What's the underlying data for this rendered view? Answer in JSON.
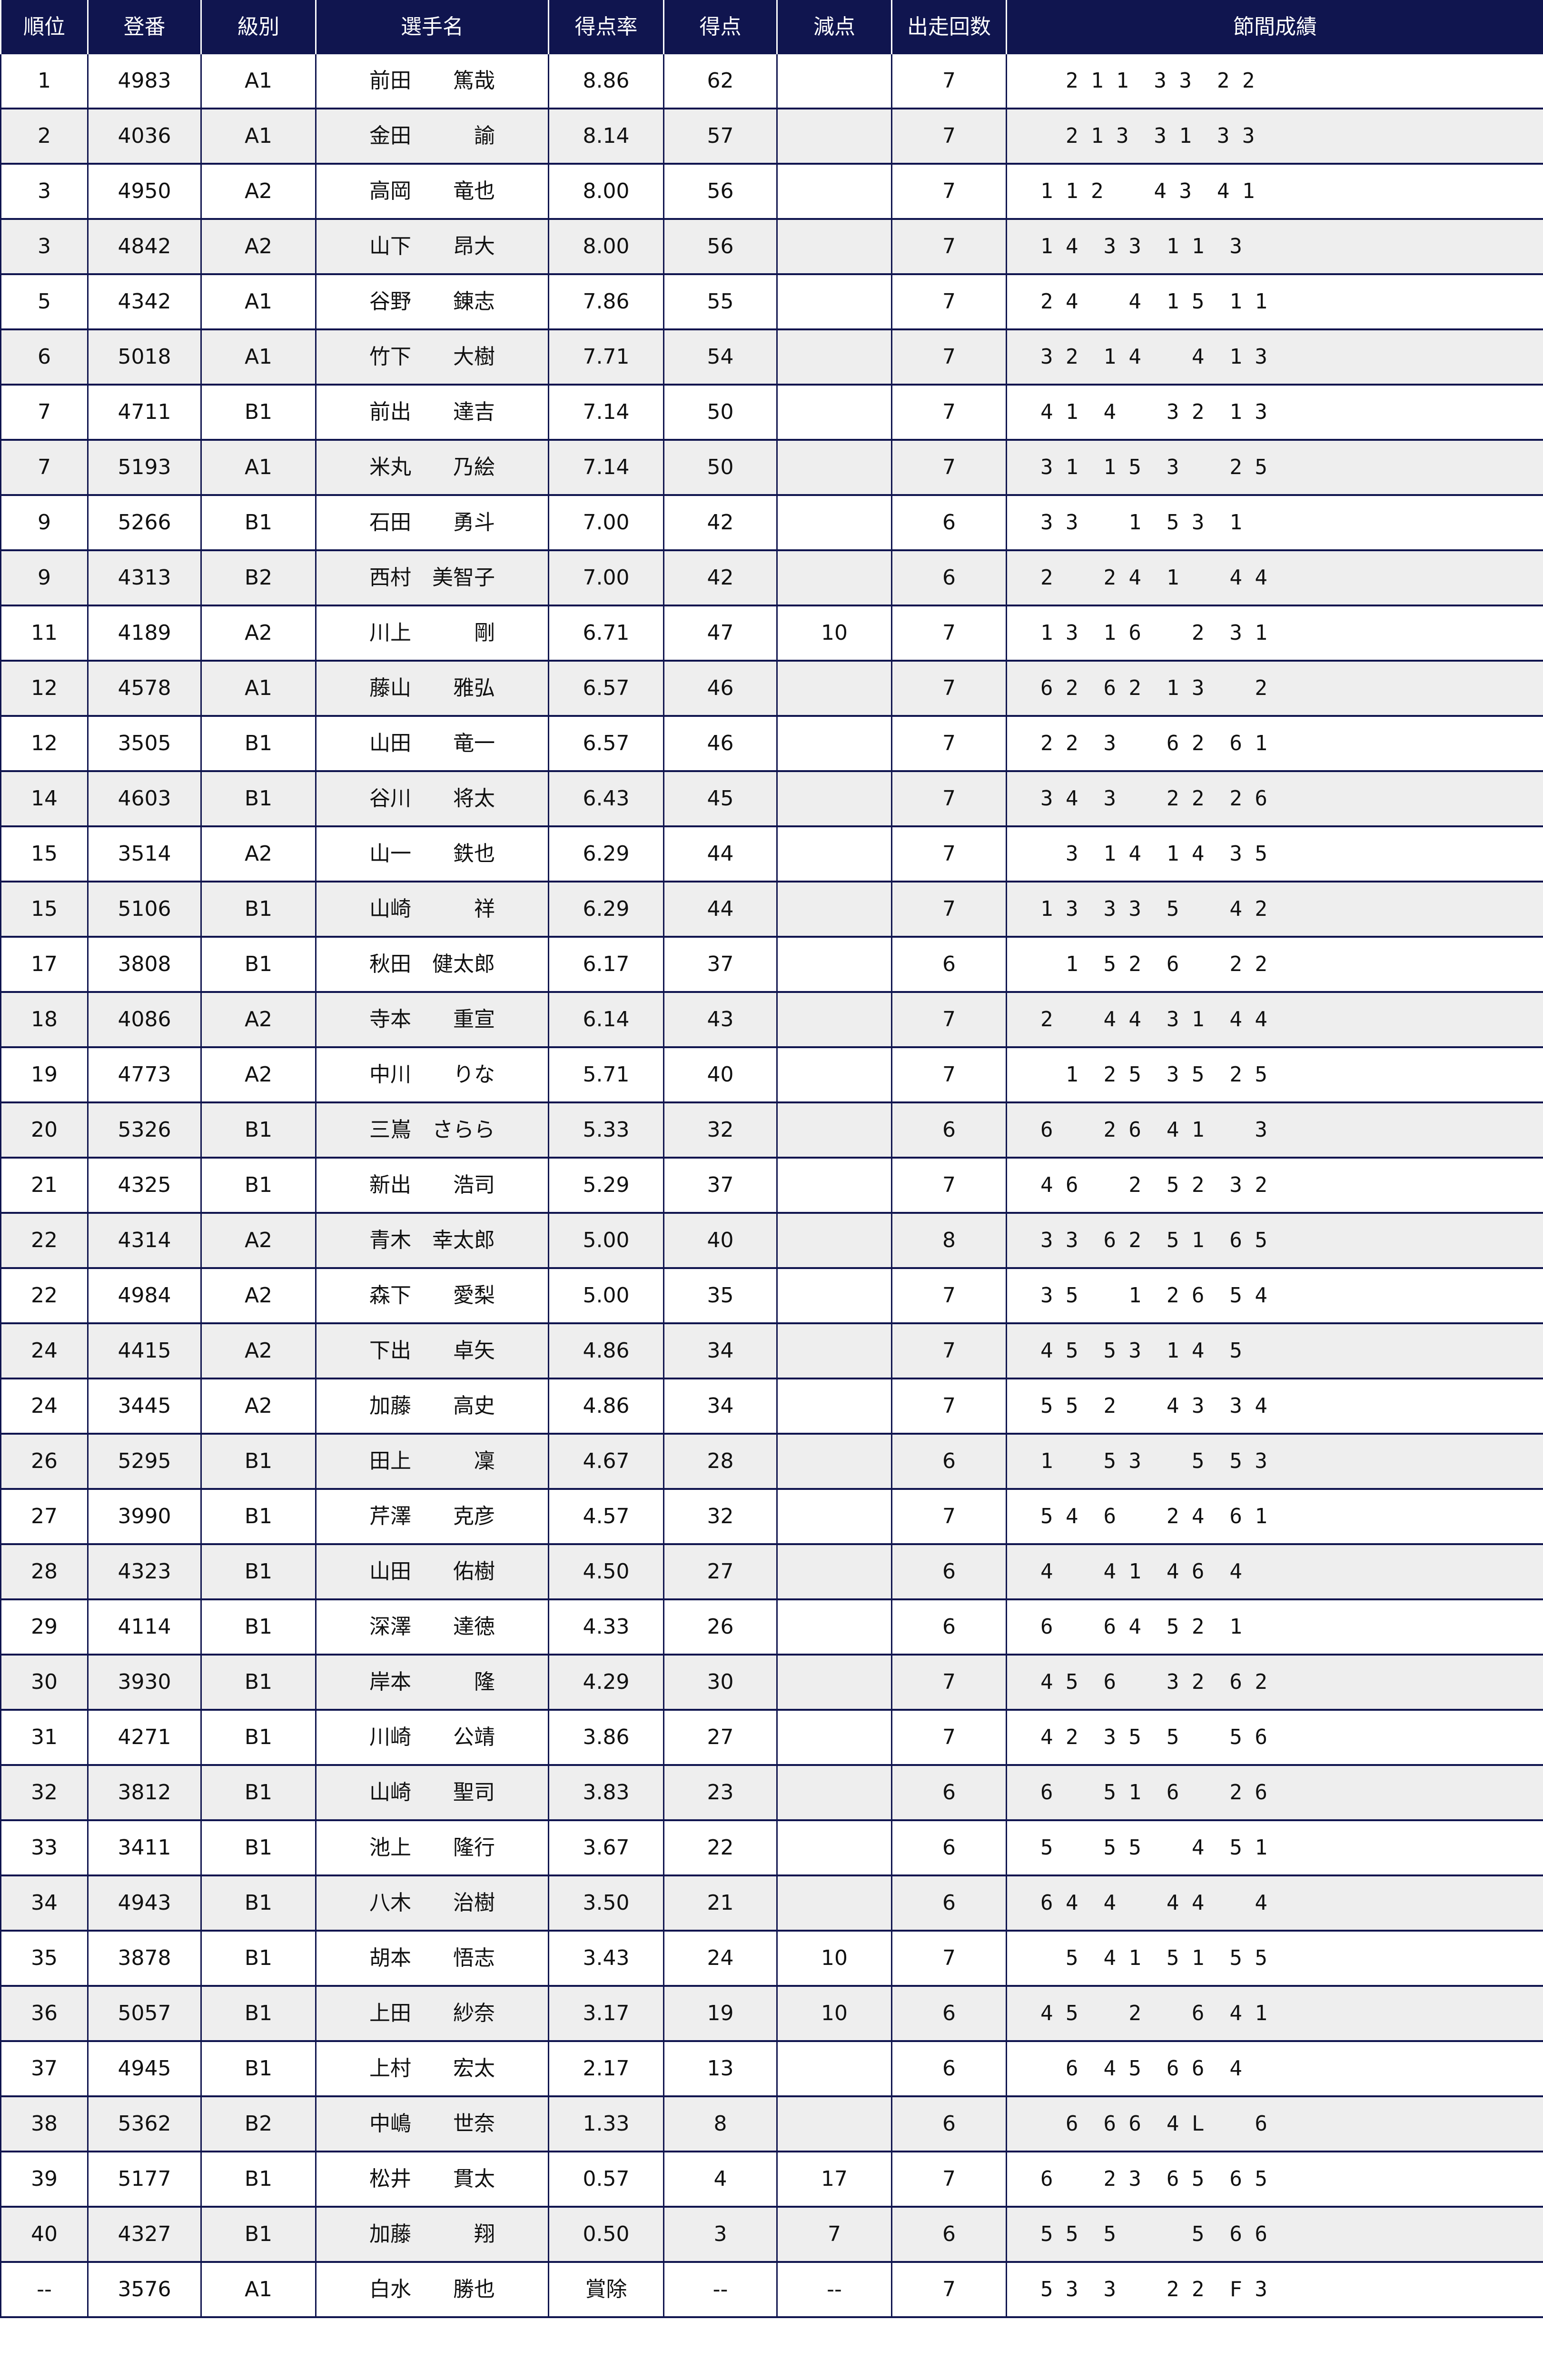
{
  "colors": {
    "header_bg": "#10154f",
    "row_alt": "#eeeeee",
    "border": "#10154f"
  },
  "headers": [
    "順位",
    "登番",
    "級別",
    "選手名",
    "得点率",
    "得点",
    "減点",
    "出走回数",
    "節間成績"
  ],
  "rows": [
    [
      "1",
      "4983",
      "A1",
      "前田　　篤哉",
      "8.86",
      "62",
      "",
      "7",
      "  2 1 1  3 3  2 2"
    ],
    [
      "2",
      "4036",
      "A1",
      "金田　　　諭",
      "8.14",
      "57",
      "",
      "7",
      "  2 1 3  3 1  3 3"
    ],
    [
      "3",
      "4950",
      "A2",
      "高岡　　竜也",
      "8.00",
      "56",
      "",
      "7",
      "1 1 2    4 3  4 1"
    ],
    [
      "3",
      "4842",
      "A2",
      "山下　　昂大",
      "8.00",
      "56",
      "",
      "7",
      "1 4  3 3  1 1  3"
    ],
    [
      "5",
      "4342",
      "A1",
      "谷野　　錬志",
      "7.86",
      "55",
      "",
      "7",
      "2 4    4  1 5  1 1"
    ],
    [
      "6",
      "5018",
      "A1",
      "竹下　　大樹",
      "7.71",
      "54",
      "",
      "7",
      "3 2  1 4    4  1 3"
    ],
    [
      "7",
      "4711",
      "B1",
      "前出　　達吉",
      "7.14",
      "50",
      "",
      "7",
      "4 1  4    3 2  1 3"
    ],
    [
      "7",
      "5193",
      "A1",
      "米丸　　乃絵",
      "7.14",
      "50",
      "",
      "7",
      "3 1  1 5  3    2 5"
    ],
    [
      "9",
      "5266",
      "B1",
      "石田　　勇斗",
      "7.00",
      "42",
      "",
      "6",
      "3 3    1  5 3  1"
    ],
    [
      "9",
      "4313",
      "B2",
      "西村　美智子",
      "7.00",
      "42",
      "",
      "6",
      "2    2 4  1    4 4"
    ],
    [
      "11",
      "4189",
      "A2",
      "川上　　　剛",
      "6.71",
      "47",
      "10",
      "7",
      "1 3  1 6    2  3 1"
    ],
    [
      "12",
      "4578",
      "A1",
      "藤山　　雅弘",
      "6.57",
      "46",
      "",
      "7",
      "6 2  6 2  1 3    2"
    ],
    [
      "12",
      "3505",
      "B1",
      "山田　　竜一",
      "6.57",
      "46",
      "",
      "7",
      "2 2  3    6 2  6 1"
    ],
    [
      "14",
      "4603",
      "B1",
      "谷川　　将太",
      "6.43",
      "45",
      "",
      "7",
      "3 4  3    2 2  2 6"
    ],
    [
      "15",
      "3514",
      "A2",
      "山一　　鉄也",
      "6.29",
      "44",
      "",
      "7",
      "  3  1 4  1 4  3 5"
    ],
    [
      "15",
      "5106",
      "B1",
      "山崎　　　祥",
      "6.29",
      "44",
      "",
      "7",
      "1 3  3 3  5    4 2"
    ],
    [
      "17",
      "3808",
      "B1",
      "秋田　健太郎",
      "6.17",
      "37",
      "",
      "6",
      "  1  5 2  6    2 2"
    ],
    [
      "18",
      "4086",
      "A2",
      "寺本　　重宣",
      "6.14",
      "43",
      "",
      "7",
      "2    4 4  3 1  4 4"
    ],
    [
      "19",
      "4773",
      "A2",
      "中川　　りな",
      "5.71",
      "40",
      "",
      "7",
      "  1  2 5  3 5  2 5"
    ],
    [
      "20",
      "5326",
      "B1",
      "三嶌　さらら",
      "5.33",
      "32",
      "",
      "6",
      "6    2 6  4 1    3"
    ],
    [
      "21",
      "4325",
      "B1",
      "新出　　浩司",
      "5.29",
      "37",
      "",
      "7",
      "4 6    2  5 2  3 2"
    ],
    [
      "22",
      "4314",
      "A2",
      "青木　幸太郎",
      "5.00",
      "40",
      "",
      "8",
      "3 3  6 2  5 1  6 5"
    ],
    [
      "22",
      "4984",
      "A2",
      "森下　　愛梨",
      "5.00",
      "35",
      "",
      "7",
      "3 5    1  2 6  5 4"
    ],
    [
      "24",
      "4415",
      "A2",
      "下出　　卓矢",
      "4.86",
      "34",
      "",
      "7",
      "4 5  5 3  1 4  5"
    ],
    [
      "24",
      "3445",
      "A2",
      "加藤　　高史",
      "4.86",
      "34",
      "",
      "7",
      "5 5  2    4 3  3 4"
    ],
    [
      "26",
      "5295",
      "B1",
      "田上　　　凜",
      "4.67",
      "28",
      "",
      "6",
      "1    5 3    5  5 3"
    ],
    [
      "27",
      "3990",
      "B1",
      "芹澤　　克彦",
      "4.57",
      "32",
      "",
      "7",
      "5 4  6    2 4  6 1"
    ],
    [
      "28",
      "4323",
      "B1",
      "山田　　佑樹",
      "4.50",
      "27",
      "",
      "6",
      "4    4 1  4 6  4"
    ],
    [
      "29",
      "4114",
      "B1",
      "深澤　　達徳",
      "4.33",
      "26",
      "",
      "6",
      "6    6 4  5 2  1"
    ],
    [
      "30",
      "3930",
      "B1",
      "岸本　　　隆",
      "4.29",
      "30",
      "",
      "7",
      "4 5  6    3 2  6 2"
    ],
    [
      "31",
      "4271",
      "B1",
      "川崎　　公靖",
      "3.86",
      "27",
      "",
      "7",
      "4 2  3 5  5    5 6"
    ],
    [
      "32",
      "3812",
      "B1",
      "山崎　　聖司",
      "3.83",
      "23",
      "",
      "6",
      "6    5 1  6    2 6"
    ],
    [
      "33",
      "3411",
      "B1",
      "池上　　隆行",
      "3.67",
      "22",
      "",
      "6",
      "5    5 5    4  5 1"
    ],
    [
      "34",
      "4943",
      "B1",
      "八木　　治樹",
      "3.50",
      "21",
      "",
      "6",
      "6 4  4    4 4    4"
    ],
    [
      "35",
      "3878",
      "B1",
      "胡本　　悟志",
      "3.43",
      "24",
      "10",
      "7",
      "  5  4 1  5 1  5 5"
    ],
    [
      "36",
      "5057",
      "B1",
      "上田　　紗奈",
      "3.17",
      "19",
      "10",
      "6",
      "4 5    2    6  4 1"
    ],
    [
      "37",
      "4945",
      "B1",
      "上村　　宏太",
      "2.17",
      "13",
      "",
      "6",
      "  6  4 5  6 6  4"
    ],
    [
      "38",
      "5362",
      "B2",
      "中嶋　　世奈",
      "1.33",
      "8",
      "",
      "6",
      "  6  6 6  4 L    6"
    ],
    [
      "39",
      "5177",
      "B1",
      "松井　　貫太",
      "0.57",
      "4",
      "17",
      "7",
      "6    2 3  6 5  6 5"
    ],
    [
      "40",
      "4327",
      "B1",
      "加藤　　　翔",
      "0.50",
      "3",
      "7",
      "6",
      "5 5  5      5  6 6"
    ],
    [
      "--",
      "3576",
      "A1",
      "白水　　勝也",
      "賞除",
      "--",
      "--",
      "7",
      "5 3  3    2 2  F 3"
    ]
  ]
}
